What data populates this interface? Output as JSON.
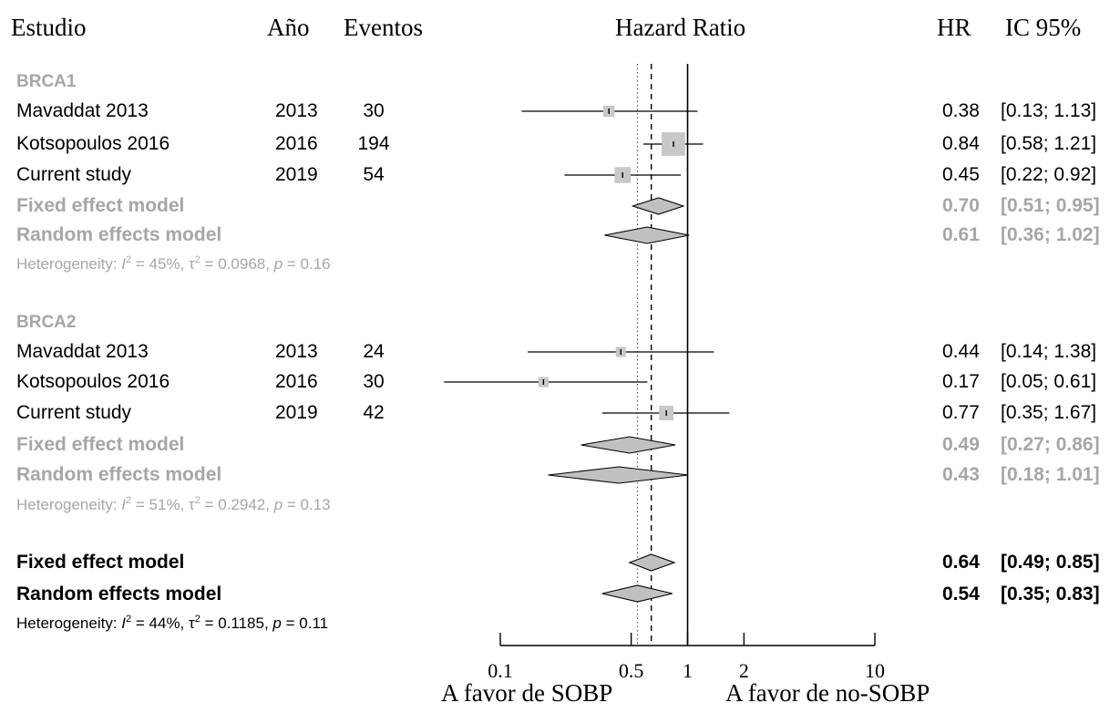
{
  "header": {
    "study": "Estudio",
    "year": "Año",
    "events": "Eventos",
    "hazard_ratio": "Hazard Ratio",
    "hr": "HR",
    "ci": "IC 95%"
  },
  "colors": {
    "subgroup_gray": "#a6a6a6",
    "box_gray": "#c8c8c8",
    "diamond_gray": "#c0c0c0",
    "black": "#000000"
  },
  "chart_data": {
    "type": "forest",
    "x_scale": "log",
    "xlim": [
      0.1,
      10
    ],
    "x_ticks": [
      "0.1",
      "0.5",
      "1",
      "2",
      "10"
    ],
    "reference_line": 1,
    "xlabel_left": "A favor de SOBP",
    "xlabel_right": "A favor de no-SOBP",
    "groups": [
      {
        "name": "BRCA1",
        "studies": [
          {
            "study": "Mavaddat 2013",
            "year": "2013",
            "events": "30",
            "hr": 0.38,
            "lo": 0.13,
            "hi": 1.13,
            "hr_text": "0.38",
            "ci_text": "[0.13; 1.13]",
            "weight": 0.15
          },
          {
            "study": "Kotsopoulos 2016",
            "year": "2016",
            "events": "194",
            "hr": 0.84,
            "lo": 0.58,
            "hi": 1.21,
            "hr_text": "0.84",
            "ci_text": "[0.58; 1.21]",
            "weight": 0.65
          },
          {
            "study": "Current study",
            "year": "2019",
            "events": "54",
            "hr": 0.45,
            "lo": 0.22,
            "hi": 0.92,
            "hr_text": "0.45",
            "ci_text": "[0.22; 0.92]",
            "weight": 0.3
          }
        ],
        "fixed": {
          "label": "Fixed effect model",
          "hr": 0.7,
          "lo": 0.51,
          "hi": 0.95,
          "hr_text": "0.70",
          "ci_text": "[0.51; 0.95]"
        },
        "random": {
          "label": "Random effects model",
          "hr": 0.61,
          "lo": 0.36,
          "hi": 1.02,
          "hr_text": "0.61",
          "ci_text": "[0.36; 1.02]"
        },
        "heterogeneity": {
          "prefix": "Heterogeneity: ",
          "i2": "I",
          "i2_value": " = 45%, ",
          "tau": "τ",
          "tau_value": " = 0.0968, ",
          "p": "p",
          "p_value": " = 0.16"
        }
      },
      {
        "name": "BRCA2",
        "studies": [
          {
            "study": "Mavaddat 2013",
            "year": "2013",
            "events": "24",
            "hr": 0.44,
            "lo": 0.14,
            "hi": 1.38,
            "hr_text": "0.44",
            "ci_text": "[0.14; 1.38]",
            "weight": 0.12
          },
          {
            "study": "Kotsopoulos 2016",
            "year": "2016",
            "events": "30",
            "hr": 0.17,
            "lo": 0.05,
            "hi": 0.61,
            "hr_text": "0.17",
            "ci_text": "[0.05; 0.61]",
            "weight": 0.12
          },
          {
            "study": "Current study",
            "year": "2019",
            "events": "42",
            "hr": 0.77,
            "lo": 0.35,
            "hi": 1.67,
            "hr_text": "0.77",
            "ci_text": "[0.35; 1.67]",
            "weight": 0.25
          }
        ],
        "fixed": {
          "label": "Fixed effect model",
          "hr": 0.49,
          "lo": 0.27,
          "hi": 0.86,
          "hr_text": "0.49",
          "ci_text": "[0.27; 0.86]"
        },
        "random": {
          "label": "Random effects model",
          "hr": 0.43,
          "lo": 0.18,
          "hi": 1.01,
          "hr_text": "0.43",
          "ci_text": "[0.18; 1.01]"
        },
        "heterogeneity": {
          "prefix": "Heterogeneity: ",
          "i2": "I",
          "i2_value": " = 51%, ",
          "tau": "τ",
          "tau_value": " = 0.2942, ",
          "p": "p",
          "p_value": " = 0.13"
        }
      }
    ],
    "overall": {
      "fixed": {
        "label": "Fixed effect model",
        "hr": 0.64,
        "lo": 0.49,
        "hi": 0.85,
        "hr_text": "0.64",
        "ci_text": "[0.49; 0.85]"
      },
      "random": {
        "label": "Random effects model",
        "hr": 0.54,
        "lo": 0.35,
        "hi": 0.83,
        "hr_text": "0.54",
        "ci_text": "[0.35; 0.83]"
      },
      "heterogeneity": {
        "prefix": "Heterogeneity: ",
        "i2": "I",
        "i2_value": " = 44%, ",
        "tau": "τ",
        "tau_value": " = 0.1185, ",
        "p": "p",
        "p_value": " = 0.11"
      }
    }
  }
}
